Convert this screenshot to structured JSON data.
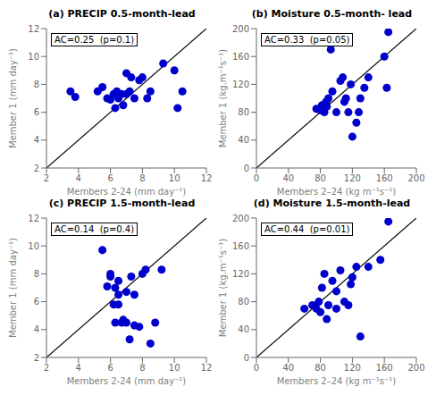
{
  "chart_data": [
    {
      "type": "scatter",
      "title": "(a) PRECIP 0.5-month-lead",
      "annotation": "AC=0.25  (p=0.1)",
      "xlabel": "Members 2-24 (mm day⁻¹)",
      "ylabel": "Member 1 (mm day⁻¹)",
      "xlim": [
        2,
        12
      ],
      "ylim": [
        2,
        12
      ],
      "xticks": [
        2,
        4,
        6,
        8,
        10,
        12
      ],
      "yticks": [
        2,
        4,
        6,
        8,
        10,
        12
      ],
      "color": "#0000CC",
      "x": [
        3.5,
        3.8,
        5.2,
        5.5,
        5.8,
        6.0,
        6.2,
        6.3,
        6.4,
        6.5,
        6.7,
        6.8,
        7.0,
        7.0,
        7.2,
        7.3,
        7.5,
        7.8,
        8.0,
        8.3,
        8.5,
        9.3,
        10.0,
        10.2,
        10.5
      ],
      "values": [
        7.5,
        7.1,
        7.5,
        7.8,
        7.0,
        6.9,
        7.3,
        6.3,
        7.5,
        7.0,
        7.3,
        6.5,
        7.3,
        8.8,
        7.5,
        8.5,
        7.0,
        8.3,
        8.5,
        7.0,
        7.5,
        9.5,
        9.0,
        6.3,
        7.5
      ]
    },
    {
      "type": "scatter",
      "title": "(b) Moisture 0.5-month- lead",
      "annotation": "AC=0.33  (p=0.05)",
      "xlabel": "Members 2–24 (kg m⁻¹s⁻¹)",
      "ylabel": "Member 1 (kg.m⁻¹s⁻¹)",
      "xlim": [
        0,
        200
      ],
      "ylim": [
        0,
        200
      ],
      "xticks": [
        0,
        40,
        80,
        120,
        160,
        200
      ],
      "yticks": [
        0,
        40,
        80,
        120,
        160,
        200
      ],
      "color": "#0000CC",
      "x": [
        75,
        80,
        82,
        85,
        87,
        88,
        90,
        93,
        95,
        100,
        105,
        108,
        110,
        112,
        115,
        118,
        120,
        125,
        128,
        130,
        135,
        140,
        160,
        163,
        165
      ],
      "values": [
        85,
        83,
        90,
        80,
        95,
        88,
        100,
        170,
        110,
        80,
        125,
        130,
        95,
        100,
        80,
        120,
        45,
        65,
        80,
        100,
        115,
        130,
        160,
        115,
        195
      ]
    },
    {
      "type": "scatter",
      "title": "(c) PRECIP 1.5-month-lead",
      "annotation": "AC=0.14  (p=0.4)",
      "xlabel": "Members 2-24 (mm day⁻¹)",
      "ylabel": "Member 1 (mm day⁻¹)",
      "xlim": [
        2,
        12
      ],
      "ylim": [
        2,
        12
      ],
      "xticks": [
        2,
        4,
        6,
        8,
        10,
        12
      ],
      "yticks": [
        2,
        4,
        6,
        8,
        10,
        12
      ],
      "color": "#0000CC",
      "x": [
        5.5,
        5.8,
        6.0,
        6.0,
        6.2,
        6.3,
        6.3,
        6.5,
        6.5,
        6.5,
        6.7,
        6.8,
        7.0,
        7.0,
        7.2,
        7.3,
        7.5,
        7.5,
        7.8,
        8.0,
        8.2,
        8.5,
        8.8,
        9.2
      ],
      "values": [
        9.7,
        7.1,
        7.8,
        8.0,
        5.8,
        7.0,
        4.5,
        5.8,
        6.5,
        7.5,
        4.5,
        4.7,
        4.5,
        6.7,
        3.3,
        7.8,
        4.3,
        6.5,
        4.2,
        8.0,
        8.3,
        3.0,
        4.5,
        8.3
      ]
    },
    {
      "type": "scatter",
      "title": "(d) Moisture 1.5-month-lead",
      "annotation": "AC=0.44  (p=0.01)",
      "xlabel": "Members 2–24 (kg m⁻¹s⁻¹)",
      "ylabel": "Member 1 (kg.m⁻¹s⁻¹)",
      "xlim": [
        0,
        200
      ],
      "ylim": [
        0,
        200
      ],
      "xticks": [
        0,
        40,
        80,
        120,
        160,
        200
      ],
      "yticks": [
        0,
        40,
        80,
        120,
        160,
        200
      ],
      "color": "#0000CC",
      "x": [
        60,
        70,
        75,
        78,
        80,
        82,
        85,
        88,
        90,
        95,
        100,
        100,
        105,
        110,
        115,
        118,
        120,
        125,
        130,
        140,
        155,
        165
      ],
      "values": [
        70,
        75,
        70,
        80,
        65,
        100,
        120,
        55,
        75,
        110,
        70,
        95,
        125,
        80,
        75,
        105,
        115,
        130,
        30,
        130,
        140,
        195
      ]
    }
  ]
}
